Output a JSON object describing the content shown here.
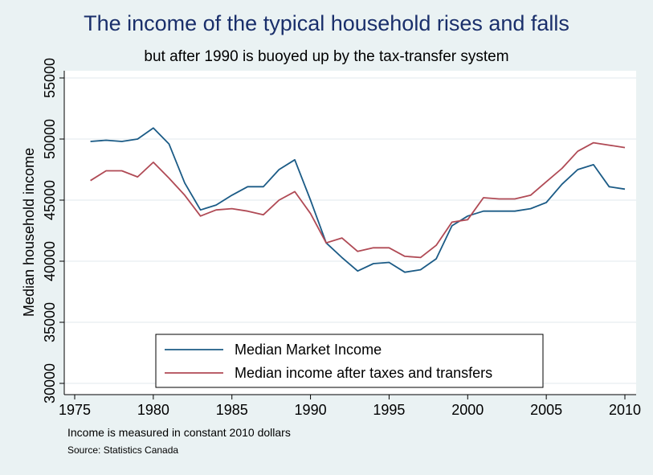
{
  "chart_data": {
    "type": "line",
    "title": "The income of the typical household rises and falls",
    "subtitle": "but after 1990 is buoyed up by the tax-transfer system",
    "xlabel": "",
    "ylabel": "Median household income",
    "xlim": [
      1975,
      2010
    ],
    "ylim": [
      30000,
      55000
    ],
    "xticks": [
      1975,
      1980,
      1985,
      1990,
      1995,
      2000,
      2005,
      2010
    ],
    "yticks": [
      30000,
      35000,
      40000,
      45000,
      50000,
      55000
    ],
    "grid": true,
    "legend_position": "bottom-center",
    "x": [
      1976,
      1977,
      1978,
      1979,
      1980,
      1981,
      1982,
      1983,
      1984,
      1985,
      1986,
      1987,
      1988,
      1989,
      1990,
      1991,
      1992,
      1993,
      1994,
      1995,
      1996,
      1997,
      1998,
      1999,
      2000,
      2001,
      2002,
      2003,
      2004,
      2005,
      2006,
      2007,
      2008,
      2009,
      2010
    ],
    "series": [
      {
        "name": "Median Market Income",
        "color": "#1b5b86",
        "values": [
          49800,
          49900,
          49800,
          50000,
          50900,
          49600,
          46400,
          44200,
          44600,
          45400,
          46100,
          46100,
          47500,
          48300,
          45000,
          41500,
          40300,
          39200,
          39800,
          39900,
          39100,
          39300,
          40200,
          42900,
          43700,
          44100,
          44100,
          44100,
          44300,
          44800,
          46300,
          47500,
          47900,
          46100,
          45900
        ]
      },
      {
        "name": "Median income after taxes and transfers",
        "color": "#b04a55",
        "values": [
          46600,
          47400,
          47400,
          46900,
          48100,
          46800,
          45400,
          43700,
          44200,
          44300,
          44100,
          43800,
          45000,
          45700,
          43900,
          41500,
          41900,
          40800,
          41100,
          41100,
          40400,
          40300,
          41300,
          43200,
          43400,
          45200,
          45100,
          45100,
          45400,
          46500,
          47600,
          49000,
          49700,
          49500,
          49300
        ]
      }
    ]
  },
  "footer": {
    "note": "Income is measured in constant 2010 dollars",
    "source": "Source: Statistics Canada"
  }
}
